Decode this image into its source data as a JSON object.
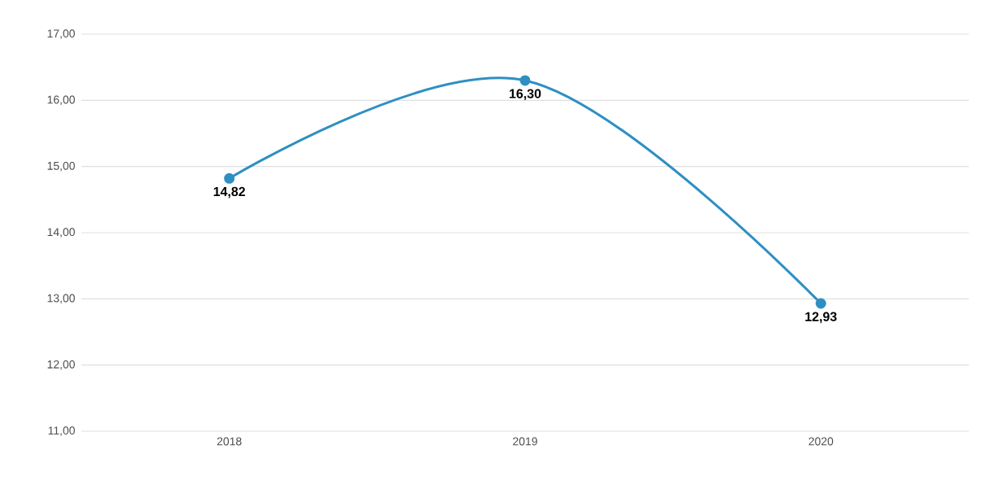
{
  "chart_data": {
    "type": "line",
    "categories": [
      "2018",
      "2019",
      "2020"
    ],
    "values": [
      14.82,
      16.3,
      12.93
    ],
    "value_labels": [
      "14,82",
      "16,30",
      "12,93"
    ],
    "color": "#2e8fc2",
    "ylim": [
      11,
      17
    ],
    "yticks": [
      {
        "value": 11,
        "label": "11,00"
      },
      {
        "value": 12,
        "label": "12,00"
      },
      {
        "value": 13,
        "label": "13,00"
      },
      {
        "value": 14,
        "label": "14,00"
      },
      {
        "value": 15,
        "label": "15,00"
      },
      {
        "value": 16,
        "label": "16,00"
      },
      {
        "value": 17,
        "label": "17,00"
      }
    ],
    "grid": "y",
    "marker": "circle"
  }
}
